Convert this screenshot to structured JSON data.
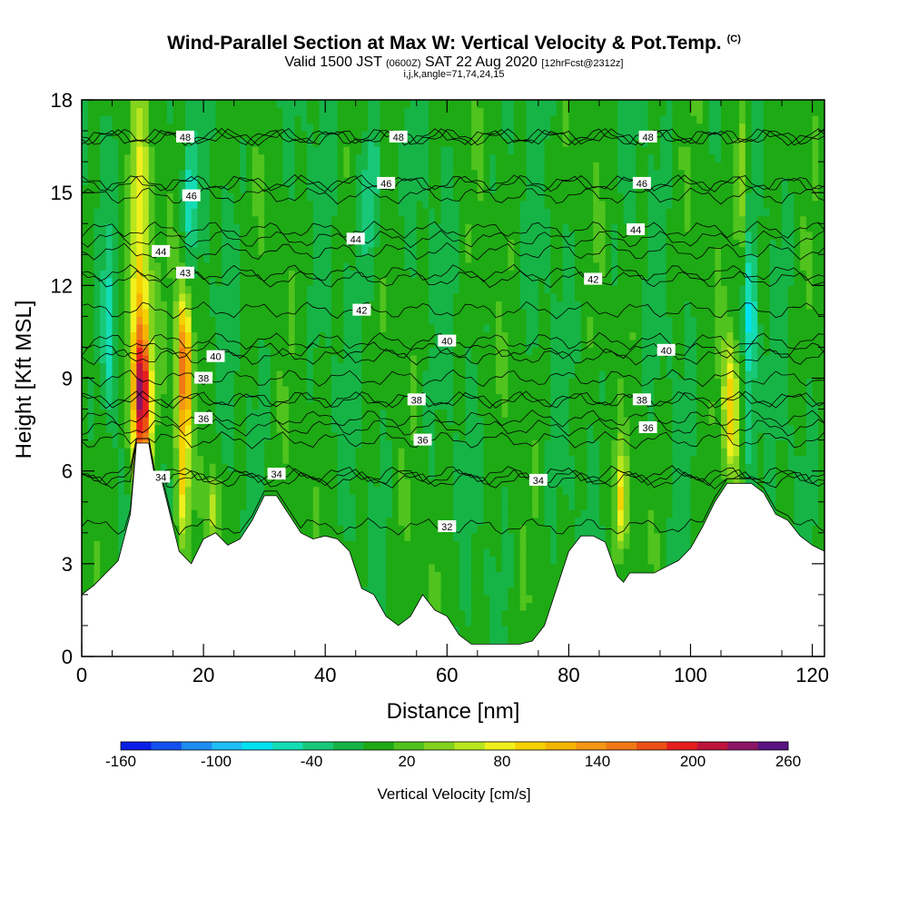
{
  "header": {
    "title": "Wind-Parallel Section at Max W: Vertical Velocity & Pot.Temp.",
    "copyright": "(C)",
    "valid_prefix": "Valid 1500 JST",
    "valid_utc": "(0600Z)",
    "valid_date": "SAT 22 Aug 2020",
    "forecast": "[12hrFcst@2312z]",
    "indices": "i,j,k,angle=71,74,24,15"
  },
  "chart_data": {
    "type": "heatmap",
    "xlabel": "Distance [nm]",
    "ylabel": "Height [Kft MSL]",
    "xlim": [
      0,
      122
    ],
    "ylim": [
      0,
      18
    ],
    "x_ticks": [
      0,
      20,
      40,
      60,
      80,
      100,
      120
    ],
    "y_ticks": [
      0,
      3,
      6,
      9,
      12,
      15,
      18
    ],
    "colorbar": {
      "label": "Vertical Velocity [cm/s]",
      "tick_labels": [
        "-160",
        "-100",
        "-40",
        "20",
        "80",
        "140",
        "200",
        "260"
      ],
      "tick_values": [
        -160,
        -100,
        -40,
        20,
        80,
        140,
        200,
        260
      ],
      "levels": [
        -160,
        -140,
        -120,
        -100,
        -80,
        -60,
        -40,
        -20,
        0,
        20,
        40,
        60,
        80,
        100,
        120,
        140,
        160,
        180,
        200,
        220,
        240,
        260
      ],
      "colors": [
        "#0a1ee6",
        "#1450f0",
        "#1e8cf0",
        "#1ebef5",
        "#00e1f0",
        "#14dcb4",
        "#18c878",
        "#16b446",
        "#1eaa14",
        "#50c31e",
        "#82d21e",
        "#b9e61e",
        "#f0f01e",
        "#f5d200",
        "#f5b400",
        "#f59614",
        "#f07814",
        "#ec5014",
        "#e61e1e",
        "#be143c",
        "#8c1464",
        "#5a1482"
      ]
    },
    "terrain": {
      "x": [
        0,
        2,
        4,
        6,
        8,
        9,
        10,
        11,
        12,
        13,
        15,
        16,
        18,
        19,
        20,
        22,
        24,
        26,
        28,
        30,
        32,
        34,
        36,
        38,
        40,
        42,
        44,
        46,
        48,
        50,
        52,
        54,
        56,
        58,
        60,
        62,
        64,
        66,
        68,
        70,
        72,
        74,
        76,
        78,
        80,
        82,
        84,
        86,
        88,
        89,
        90,
        92,
        94,
        96,
        98,
        100,
        102,
        104,
        106,
        108,
        110,
        112,
        114,
        116,
        118,
        120,
        122
      ],
      "height_kft": [
        2.0,
        2.3,
        2.7,
        3.1,
        4.6,
        6.9,
        6.9,
        6.9,
        5.8,
        5.8,
        4.2,
        3.4,
        3.0,
        3.4,
        3.8,
        4.0,
        3.6,
        3.8,
        4.4,
        5.2,
        5.2,
        4.6,
        4.0,
        3.8,
        3.9,
        3.8,
        3.4,
        2.2,
        2.0,
        1.3,
        1.0,
        1.3,
        2.0,
        1.5,
        1.3,
        0.7,
        0.4,
        0.4,
        0.4,
        0.4,
        0.4,
        0.5,
        1.0,
        2.2,
        3.4,
        3.9,
        3.9,
        3.7,
        2.6,
        2.4,
        2.7,
        2.7,
        2.7,
        2.9,
        3.1,
        3.5,
        4.2,
        5.0,
        5.6,
        5.6,
        5.6,
        5.3,
        4.6,
        4.4,
        3.9,
        3.6,
        3.4
      ]
    },
    "theta_contours": [
      {
        "label": "32",
        "base_kft": 4.2,
        "label_x": 60
      },
      {
        "label": "34",
        "base_kft": 5.7,
        "label_x": 75
      },
      {
        "label": "34",
        "base_kft": 5.8,
        "label_x": 13
      },
      {
        "label": "34",
        "base_kft": 5.9,
        "label_x": 32
      },
      {
        "label": "36",
        "base_kft": 7.0,
        "label_x": 56
      },
      {
        "label": "36",
        "base_kft": 7.4,
        "label_x": 93
      },
      {
        "label": "36",
        "base_kft": 7.7,
        "label_x": 20
      },
      {
        "label": "38",
        "base_kft": 8.3,
        "label_x": 55
      },
      {
        "label": "38",
        "base_kft": 8.3,
        "label_x": 92
      },
      {
        "label": "38",
        "base_kft": 9.0,
        "label_x": 20
      },
      {
        "label": "40",
        "base_kft": 9.7,
        "label_x": 22
      },
      {
        "label": "40",
        "base_kft": 10.2,
        "label_x": 60
      },
      {
        "label": "40",
        "base_kft": 9.9,
        "label_x": 96
      },
      {
        "label": "42",
        "base_kft": 11.2,
        "label_x": 46
      },
      {
        "label": "42",
        "base_kft": 12.2,
        "label_x": 84
      },
      {
        "label": "43",
        "base_kft": 12.4,
        "label_x": 17
      },
      {
        "label": "44",
        "base_kft": 13.1,
        "label_x": 13
      },
      {
        "label": "44",
        "base_kft": 13.5,
        "label_x": 45
      },
      {
        "label": "44",
        "base_kft": 13.8,
        "label_x": 91
      },
      {
        "label": "46",
        "base_kft": 14.9,
        "label_x": 18
      },
      {
        "label": "46",
        "base_kft": 15.3,
        "label_x": 50
      },
      {
        "label": "46",
        "base_kft": 15.3,
        "label_x": 92
      },
      {
        "label": "48",
        "base_kft": 16.8,
        "label_x": 17
      },
      {
        "label": "48",
        "base_kft": 16.8,
        "label_x": 52
      },
      {
        "label": "48",
        "base_kft": 16.8,
        "label_x": 93
      }
    ],
    "updraft_cores": [
      {
        "x": 9.8,
        "y_kft": 8.3,
        "peak_cms": 220,
        "x_halfwidth": 1.6,
        "y_halfwidth": 2.4
      },
      {
        "x": 9.6,
        "y_kft": 12.8,
        "peak_cms": 95,
        "x_halfwidth": 1.7,
        "y_halfwidth": 5.0
      },
      {
        "x": 16.8,
        "y_kft": 9.3,
        "peak_cms": 175,
        "x_halfwidth": 1.2,
        "y_halfwidth": 2.4
      },
      {
        "x": 16.6,
        "y_kft": 5.6,
        "peak_cms": 80,
        "x_halfwidth": 1.0,
        "y_halfwidth": 1.8
      },
      {
        "x": 21.5,
        "y_kft": 4.8,
        "peak_cms": 75,
        "x_halfwidth": 1.0,
        "y_halfwidth": 1.3
      },
      {
        "x": 88.6,
        "y_kft": 5.0,
        "peak_cms": 90,
        "x_halfwidth": 1.0,
        "y_halfwidth": 1.6
      },
      {
        "x": 106.6,
        "y_kft": 8.0,
        "peak_cms": 110,
        "x_halfwidth": 1.3,
        "y_halfwidth": 2.2
      },
      {
        "x": 108.4,
        "y_kft": 15.5,
        "peak_cms": 70,
        "x_halfwidth": 0.9,
        "y_halfwidth": 2.4
      }
    ],
    "downdraft_cores": [
      {
        "x": 4.6,
        "y_kft": 10.5,
        "peak_cms": -55,
        "x_halfwidth": 1.0,
        "y_halfwidth": 2.6
      },
      {
        "x": 17.8,
        "y_kft": 14.8,
        "peak_cms": -60,
        "x_halfwidth": 1.0,
        "y_halfwidth": 1.8
      },
      {
        "x": 47.5,
        "y_kft": 14.8,
        "peak_cms": -45,
        "x_halfwidth": 1.8,
        "y_halfwidth": 2.6
      },
      {
        "x": 109.8,
        "y_kft": 10.5,
        "peak_cms": -75,
        "x_halfwidth": 1.0,
        "y_halfwidth": 2.6
      },
      {
        "x": 109.8,
        "y_kft": 6.8,
        "peak_cms": -40,
        "x_halfwidth": 1.2,
        "y_halfwidth": 1.4
      }
    ]
  }
}
